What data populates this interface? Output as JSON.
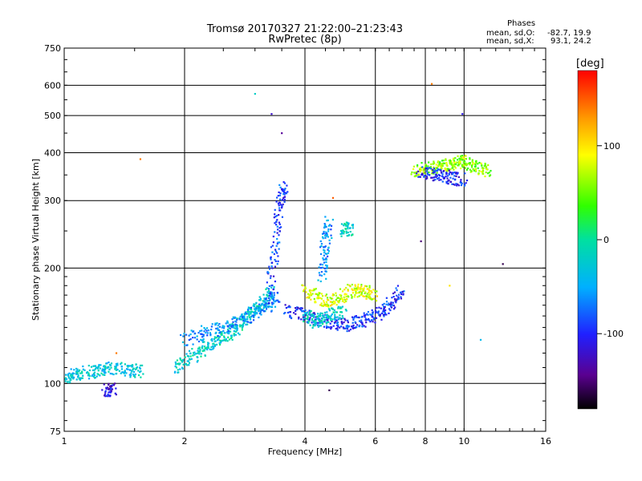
{
  "chart_data": {
    "type": "scatter",
    "title": "Tromsø 20170327 21:22:00–21:23:43",
    "subtitle": "RwPretec (8p)",
    "stats": {
      "title": "Phases",
      "line_o_label": "mean, sd,O:",
      "line_o_values": "-82.7, 19.9",
      "line_x_label": "mean, sd,X:",
      "line_x_values": "93.1, 24.2"
    },
    "xlabel": "Frequency [MHz]",
    "ylabel": "Stationary phase Virtual Height [km]",
    "xscale": "log",
    "yscale": "log",
    "xlim": [
      1,
      16
    ],
    "ylim": [
      75,
      750
    ],
    "x_ticks": [
      1,
      2,
      4,
      6,
      8,
      10,
      16
    ],
    "y_ticks": [
      75,
      100,
      200,
      300,
      400,
      500,
      600,
      750
    ],
    "grid": true,
    "colorbar": {
      "label": "[deg]",
      "range": [
        -180,
        180
      ],
      "ticks": [
        100,
        0,
        -100
      ]
    },
    "colors": {
      "grid": "#000000",
      "axis": "#000000"
    },
    "clusters": [
      {
        "name": "low-freq trace",
        "x": [
          1.0,
          1.08,
          1.2,
          1.3,
          1.45,
          1.55
        ],
        "y": [
          103,
          106,
          108,
          110,
          108,
          108
        ],
        "phase": -30
      },
      {
        "name": "low blob",
        "x": [
          1.27,
          1.33
        ],
        "y": [
          96,
          97
        ],
        "phase": -110
      },
      {
        "name": "F1 rising trace",
        "x": [
          1.9,
          2.1,
          2.3,
          2.5,
          2.7,
          2.9,
          3.1,
          3.3
        ],
        "y": [
          110,
          118,
          125,
          132,
          140,
          150,
          160,
          175
        ],
        "phase": -20
      },
      {
        "name": "F1 inner trace",
        "x": [
          2.0,
          2.3,
          2.6,
          2.9,
          3.2,
          3.4
        ],
        "y": [
          130,
          137,
          142,
          150,
          160,
          170
        ],
        "phase": -60
      },
      {
        "name": "F cusp vertical",
        "x": [
          3.25,
          3.35,
          3.45,
          3.55
        ],
        "y": [
          160,
          220,
          290,
          330
        ],
        "phase": -90
      },
      {
        "name": "F2 main",
        "x": [
          3.6,
          4.0,
          4.5,
          5.0,
          5.5,
          6.0,
          6.5,
          7.0
        ],
        "y": [
          155,
          150,
          145,
          142,
          145,
          150,
          160,
          175
        ],
        "phase": -95
      },
      {
        "name": "F2 upper X",
        "x": [
          4.0,
          4.4,
          4.8,
          5.2,
          5.6,
          6.0
        ],
        "y": [
          175,
          165,
          165,
          175,
          175,
          170
        ],
        "phase": 80
      },
      {
        "name": "F2 mid",
        "x": [
          4.0,
          4.3,
          4.6,
          5.0
        ],
        "y": [
          150,
          145,
          150,
          155
        ],
        "phase": -20
      },
      {
        "name": "vertical at 4.5",
        "x": [
          4.4,
          4.5,
          4.6
        ],
        "y": [
          190,
          230,
          265
        ],
        "phase": -60
      },
      {
        "name": "spot 5 MHz",
        "x": [
          5.0,
          5.2
        ],
        "y": [
          250,
          255
        ],
        "phase": -20
      },
      {
        "name": "spread F high",
        "x": [
          7.5,
          8.2,
          8.8,
          9.5,
          10.0,
          10.8,
          11.5
        ],
        "y": [
          360,
          365,
          370,
          375,
          380,
          365,
          360
        ],
        "phase": 60
      },
      {
        "name": "spread F low",
        "x": [
          7.8,
          8.5,
          9.2,
          10.0
        ],
        "y": [
          355,
          350,
          345,
          340
        ],
        "phase": -100
      }
    ],
    "outliers": [
      {
        "x": 3.0,
        "y": 570,
        "phase": -20
      },
      {
        "x": 3.3,
        "y": 505,
        "phase": -120
      },
      {
        "x": 3.5,
        "y": 450,
        "phase": -140
      },
      {
        "x": 1.55,
        "y": 385,
        "phase": 140
      },
      {
        "x": 8.3,
        "y": 605,
        "phase": 140
      },
      {
        "x": 9.9,
        "y": 505,
        "phase": -110
      },
      {
        "x": 4.6,
        "y": 96,
        "phase": -160
      },
      {
        "x": 1.35,
        "y": 120,
        "phase": 140
      },
      {
        "x": 12.5,
        "y": 205,
        "phase": -160
      },
      {
        "x": 7.8,
        "y": 235,
        "phase": -150
      },
      {
        "x": 4.7,
        "y": 305,
        "phase": 150
      },
      {
        "x": 11.0,
        "y": 130,
        "phase": -40
      },
      {
        "x": 9.2,
        "y": 180,
        "phase": 100
      }
    ]
  }
}
